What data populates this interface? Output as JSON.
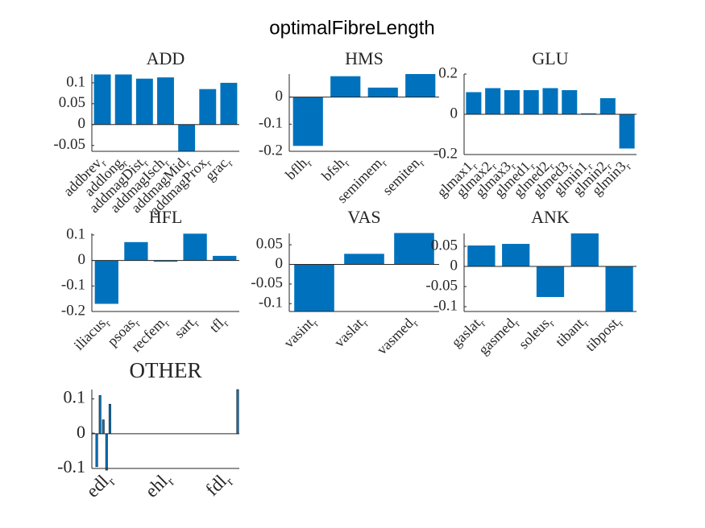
{
  "title": "optimalFibreLength",
  "chart_data": [
    {
      "type": "bar",
      "title": "ADD",
      "categories": [
        "addbrev",
        "addlong",
        "addmagDist",
        "addmagIsch",
        "addmagMid",
        "addmagProx",
        "grac"
      ],
      "category_suffix": "r",
      "values": [
        0.12,
        0.12,
        0.11,
        0.113,
        -0.064,
        0.085,
        0.1
      ],
      "color": "#0072bd",
      "ylim": [
        -0.064,
        0.121
      ],
      "yticks": [
        -0.05,
        0,
        0.05,
        0.1
      ]
    },
    {
      "type": "bar",
      "title": "HMS",
      "categories": [
        "bflh",
        "bfsh",
        "semimem",
        "semiten"
      ],
      "category_suffix": "r",
      "values": [
        -0.18,
        0.077,
        0.035,
        0.085
      ],
      "color": "#0072bd",
      "ylim": [
        -0.2,
        0.085
      ],
      "yticks": [
        -0.2,
        -0.1,
        0
      ]
    },
    {
      "type": "bar",
      "title": "GLU",
      "categories": [
        "glmax1",
        "glmax2",
        "glmax3",
        "glmed1",
        "glmed2",
        "glmed3",
        "glmin1",
        "glmin2",
        "glmin3"
      ],
      "category_suffix": "r",
      "values": [
        0.11,
        0.13,
        0.12,
        0.12,
        0.13,
        0.12,
        0.005,
        0.08,
        -0.17
      ],
      "color": "#0072bd",
      "ylim": [
        -0.2,
        0.2
      ],
      "yticks": [
        -0.2,
        0,
        0.2
      ]
    },
    {
      "type": "bar",
      "title": "HFL",
      "categories": [
        "iliacus",
        "psoas",
        "recfem",
        "sart",
        "tfl"
      ],
      "category_suffix": "r",
      "values": [
        -0.17,
        0.072,
        -0.005,
        0.105,
        0.018
      ],
      "color": "#0072bd",
      "ylim": [
        -0.2,
        0.106
      ],
      "yticks": [
        -0.2,
        -0.1,
        0,
        0.1
      ]
    },
    {
      "type": "bar",
      "title": "VAS",
      "categories": [
        "vasint",
        "vaslat",
        "vasmed"
      ],
      "category_suffix": "r",
      "values": [
        -0.12,
        0.027,
        0.08
      ],
      "color": "#0072bd",
      "ylim": [
        -0.12,
        0.079
      ],
      "yticks": [
        -0.1,
        -0.05,
        0,
        0.05
      ]
    },
    {
      "type": "bar",
      "title": "ANK",
      "categories": [
        "gaslat",
        "gasmed",
        "soleus",
        "tibant",
        "tibpost"
      ],
      "category_suffix": "r",
      "values": [
        0.052,
        0.056,
        -0.076,
        0.082,
        -0.112
      ],
      "color": "#0072bd",
      "ylim": [
        -0.112,
        0.082
      ],
      "yticks": [
        -0.1,
        -0.05,
        0,
        0.05
      ]
    },
    {
      "type": "bar",
      "title": "OTHER",
      "category_suffix": "r",
      "categories": [
        null,
        null,
        null,
        null,
        null,
        "edl",
        null,
        null,
        null,
        null,
        null,
        null,
        null,
        null,
        null,
        null,
        null,
        null,
        null,
        null,
        null,
        null,
        null,
        "ehl",
        null,
        null,
        null,
        null,
        null,
        null,
        null,
        null,
        null,
        null,
        null,
        null,
        null,
        null,
        null,
        null,
        null,
        "fdl",
        null,
        null,
        null
      ],
      "values": [
        0.002,
        -0.095,
        0.11,
        0.04,
        -0.105,
        0.085,
        0,
        0,
        0,
        0,
        0,
        0,
        0,
        0,
        0,
        0,
        0,
        0,
        0,
        0,
        0,
        0,
        0,
        0,
        0,
        0,
        0,
        0,
        0,
        0,
        0,
        0,
        0,
        0,
        0,
        0,
        0,
        0,
        0,
        0,
        0,
        0,
        0,
        0,
        0.127
      ],
      "color": "#0072bd",
      "ylim": [
        -0.1,
        0.127
      ],
      "yticks": [
        -0.1,
        0,
        0.1
      ]
    }
  ]
}
